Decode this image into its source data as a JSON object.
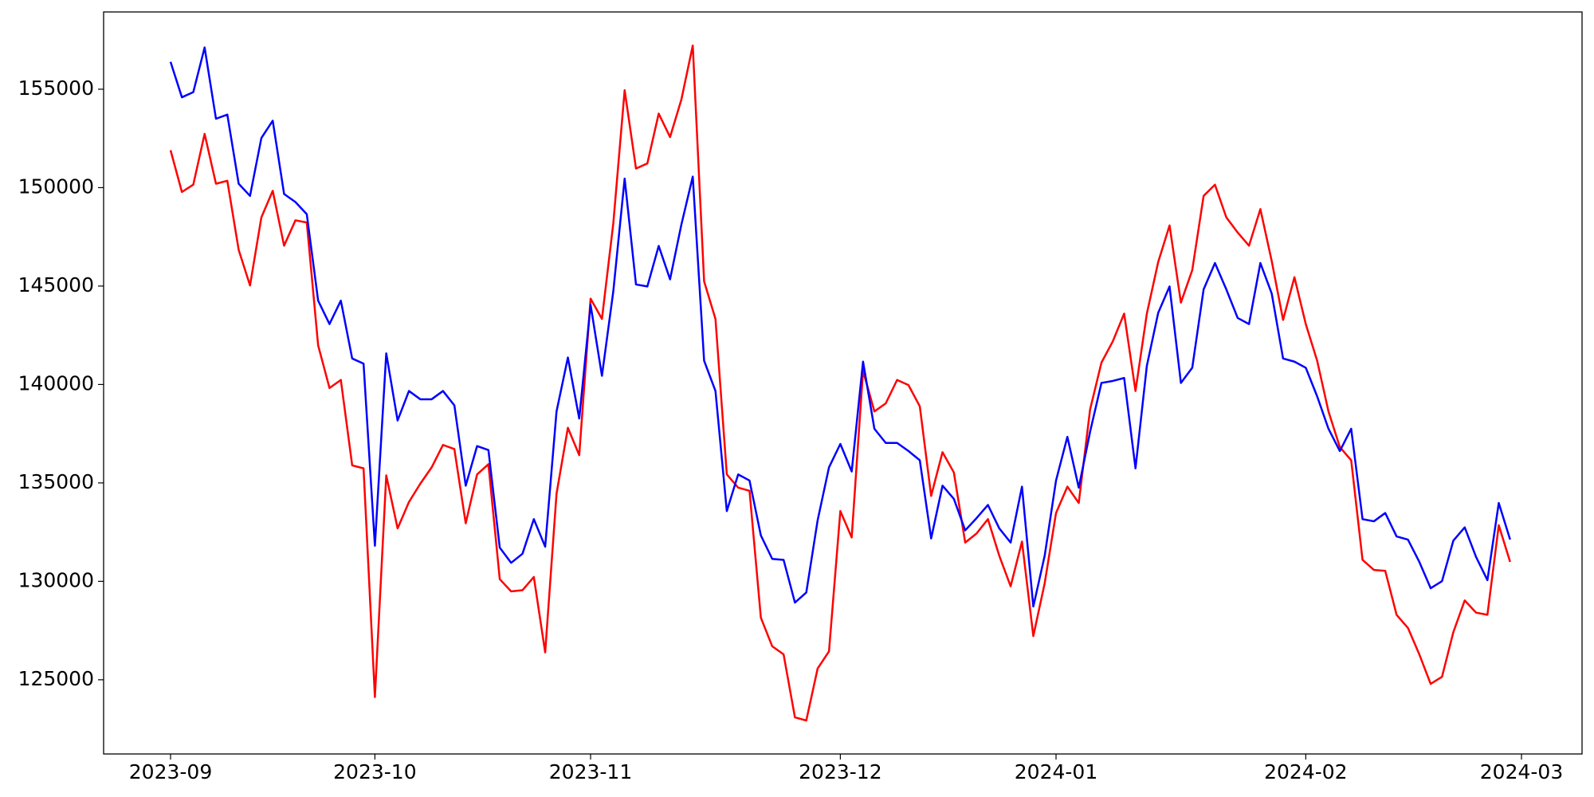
{
  "chart_data": {
    "type": "line",
    "categories": [
      "2023-09",
      null,
      null,
      null,
      null,
      null,
      null,
      null,
      null,
      null,
      null,
      null,
      null,
      null,
      null,
      null,
      null,
      null,
      "2023-10",
      null,
      null,
      null,
      null,
      null,
      null,
      null,
      null,
      null,
      null,
      null,
      null,
      null,
      null,
      null,
      null,
      null,
      null,
      "2023-11",
      null,
      null,
      null,
      null,
      null,
      null,
      null,
      null,
      null,
      null,
      null,
      null,
      null,
      null,
      null,
      null,
      null,
      null,
      null,
      null,
      null,
      "2023-12",
      null,
      null,
      null,
      null,
      null,
      null,
      null,
      null,
      null,
      null,
      null,
      null,
      null,
      null,
      null,
      null,
      null,
      null,
      "2024-01",
      null,
      null,
      null,
      null,
      null,
      null,
      null,
      null,
      null,
      null,
      null,
      null,
      null,
      null,
      null,
      null,
      null,
      null,
      null,
      null,
      null,
      "2024-02",
      null,
      null,
      null,
      null,
      null,
      null,
      null,
      null,
      null,
      null,
      null,
      null,
      null,
      null,
      null,
      null,
      null,
      null,
      "2024-03"
    ],
    "series": [
      {
        "color": "#ff0000",
        "values": [
          151900,
          149780,
          150150,
          152730,
          150200,
          150350,
          146840,
          145030,
          148490,
          149840,
          147050,
          148340,
          148230,
          141990,
          139820,
          140230,
          135890,
          135740,
          124120,
          135380,
          132690,
          134030,
          134960,
          135790,
          136930,
          136720,
          132950,
          135430,
          135950,
          130110,
          129490,
          129550,
          130220,
          126390,
          134450,
          137800,
          136410,
          144360,
          143330,
          148180,
          154950,
          150970,
          151230,
          153760,
          152570,
          154480,
          157220,
          145240,
          143330,
          135430,
          134760,
          134600,
          128150,
          126700,
          126290,
          123090,
          122930,
          125570,
          126440,
          133570,
          132230,
          140700,
          138630,
          139040,
          140230,
          139970,
          138890,
          134340,
          136560,
          135530,
          131970,
          132430,
          133160,
          131300,
          129750,
          132020,
          127220,
          129900,
          133470,
          134810,
          133980,
          138730,
          141110,
          142190,
          143600,
          139670,
          143600,
          146220,
          148080,
          144160,
          145810,
          149580,
          150150,
          148490,
          147720,
          147050,
          148910,
          146270,
          143280,
          145450,
          143070,
          141210,
          138630,
          136820,
          136150,
          131090,
          130580,
          130530,
          128300,
          127630,
          126290,
          124790,
          125150,
          127420,
          129030,
          128410,
          128300,
          132850,
          130990,
          null
        ]
      },
      {
        "color": "#0000ff",
        "values": [
          156390,
          154590,
          154850,
          157120,
          153500,
          153710,
          150200,
          149580,
          152520,
          153400,
          149680,
          149270,
          148650,
          144260,
          143070,
          144260,
          141320,
          141060,
          131810,
          141580,
          138170,
          139670,
          139250,
          139250,
          139670,
          138940,
          134860,
          136870,
          136670,
          131710,
          130940,
          131400,
          133160,
          131760,
          138630,
          141370,
          138270,
          144050,
          140440,
          144730,
          150460,
          145080,
          144980,
          147040,
          145340,
          148130,
          150560,
          141210,
          139670,
          133570,
          135430,
          135120,
          132330,
          131140,
          131090,
          128920,
          129430,
          133100,
          135790,
          136980,
          135580,
          141160,
          137750,
          137030,
          137030,
          136620,
          136150,
          132180,
          134860,
          134190,
          132590,
          133210,
          133880,
          132690,
          131970,
          134810,
          128720,
          131300,
          135120,
          137340,
          134760,
          137600,
          140080,
          140180,
          140330,
          135740,
          140950,
          143640,
          144980,
          140080,
          140850,
          144830,
          146170,
          144830,
          143380,
          143070,
          146170,
          144620,
          141320,
          141160,
          140850,
          139400,
          137750,
          136620,
          137750,
          133160,
          133050,
          133470,
          132280,
          132120,
          130990,
          129650,
          130010,
          132070,
          132740,
          131240,
          130060,
          133980,
          132120,
          null
        ]
      }
    ],
    "ylim": [
      121230,
      158925
    ],
    "yticks": [
      125000,
      130000,
      135000,
      140000,
      145000,
      150000,
      155000
    ],
    "grid": false
  }
}
